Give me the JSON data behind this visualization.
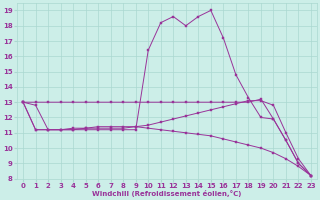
{
  "xlabel": "Windchill (Refroidissement éolien,°C)",
  "xlim": [
    -0.5,
    23.5
  ],
  "ylim": [
    8,
    19.5
  ],
  "xticks": [
    0,
    1,
    2,
    3,
    4,
    5,
    6,
    7,
    8,
    9,
    10,
    11,
    12,
    13,
    14,
    15,
    16,
    17,
    18,
    19,
    20,
    21,
    22,
    23
  ],
  "yticks": [
    8,
    9,
    10,
    11,
    12,
    13,
    14,
    15,
    16,
    17,
    18,
    19
  ],
  "background_color": "#cceee8",
  "grid_color": "#aad8d0",
  "line_color": "#993399",
  "series_x": [
    [
      0,
      1,
      2,
      3,
      4,
      5,
      6,
      7,
      8,
      9,
      10,
      11,
      12,
      13,
      14,
      15,
      16,
      17,
      18,
      19,
      20,
      21,
      22,
      23
    ],
    [
      0,
      1,
      2,
      3,
      4,
      5,
      6,
      7,
      8,
      9,
      10,
      11,
      12,
      13,
      14,
      15,
      16,
      17,
      18,
      19,
      20,
      21,
      22,
      23
    ],
    [
      0,
      1,
      2,
      3,
      4,
      5,
      6,
      7,
      8,
      9,
      10,
      11,
      12,
      13,
      14,
      15,
      16,
      17,
      18,
      19,
      20,
      21,
      22,
      23
    ],
    [
      0,
      1,
      2,
      3,
      4,
      5,
      6,
      7,
      8,
      9,
      10,
      11,
      12,
      13,
      14,
      15,
      16,
      17,
      18,
      19,
      20,
      21,
      22,
      23
    ]
  ],
  "series_y": [
    [
      13.0,
      13.0,
      13.0,
      13.0,
      13.0,
      13.0,
      13.0,
      13.0,
      13.0,
      13.0,
      13.0,
      13.0,
      13.0,
      13.0,
      13.0,
      13.0,
      13.0,
      13.0,
      13.0,
      13.2,
      11.9,
      10.5,
      9.0,
      8.2
    ],
    [
      13.0,
      12.8,
      11.2,
      11.2,
      11.2,
      11.2,
      11.2,
      11.2,
      11.2,
      11.2,
      16.4,
      18.2,
      18.6,
      18.0,
      18.6,
      19.0,
      17.2,
      14.8,
      13.3,
      12.0,
      11.9,
      10.5,
      9.0,
      8.2
    ],
    [
      13.0,
      11.2,
      11.2,
      11.2,
      11.2,
      11.3,
      11.3,
      11.3,
      11.3,
      11.4,
      11.5,
      11.7,
      11.9,
      12.1,
      12.3,
      12.5,
      12.7,
      12.9,
      13.1,
      13.1,
      12.8,
      11.0,
      9.3,
      8.2
    ],
    [
      13.0,
      11.2,
      11.2,
      11.2,
      11.3,
      11.3,
      11.4,
      11.4,
      11.4,
      11.4,
      11.3,
      11.2,
      11.1,
      11.0,
      10.9,
      10.8,
      10.6,
      10.4,
      10.2,
      10.0,
      9.7,
      9.3,
      8.8,
      8.2
    ]
  ]
}
